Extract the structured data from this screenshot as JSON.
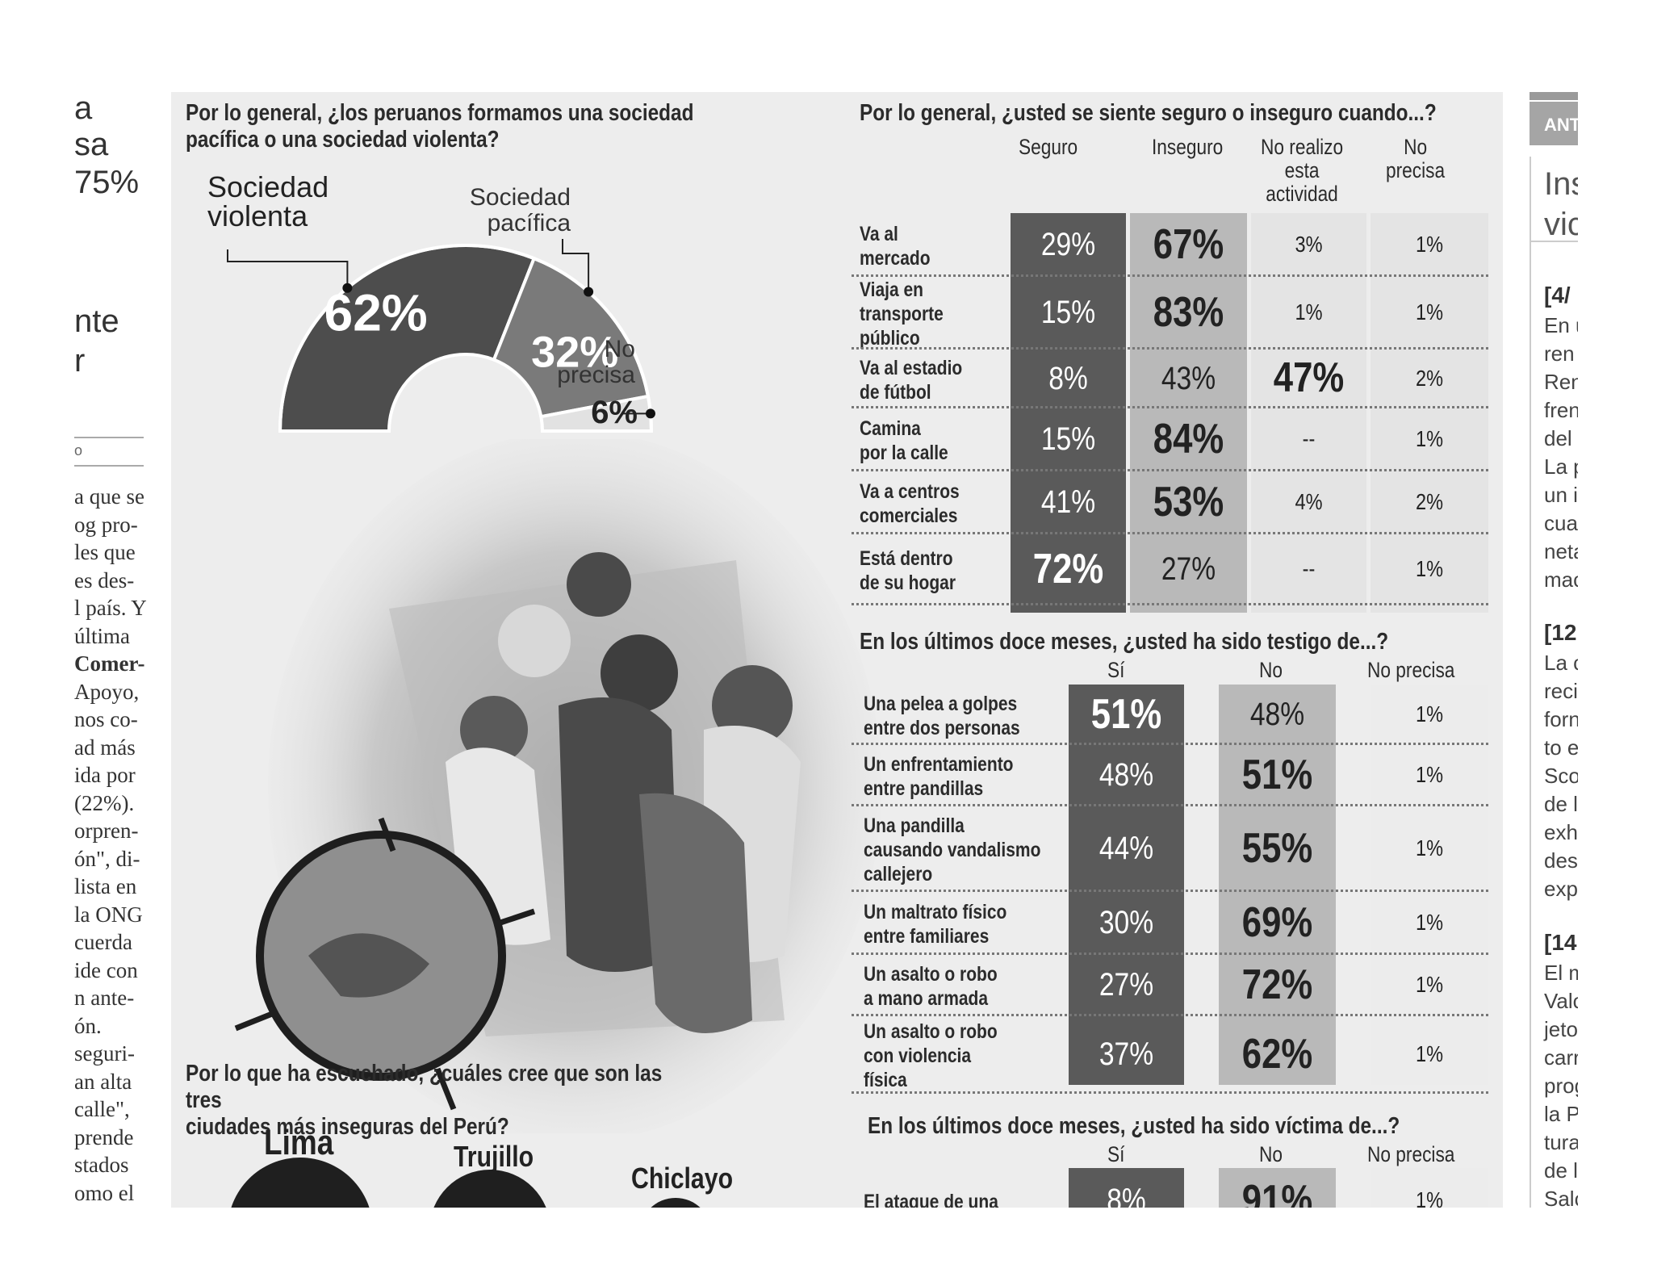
{
  "left_column": {
    "fragments": [
      "a",
      "sa",
      "75%",
      "nte",
      "r"
    ],
    "rule_text": "o",
    "body_lines": [
      "a que se",
      "og pro-",
      "les que",
      "es des-",
      "l país. Y",
      "última",
      "Comer-",
      "Apoyo,",
      "nos co-",
      "ad más",
      "ida por",
      "(22%).",
      "orpren-",
      "ón\", di-",
      "lista en",
      "la ONG",
      "cuerda",
      "ide con",
      "n ante-",
      "ón.",
      "seguri-",
      "an alta",
      "calle\",",
      "prende",
      "stados",
      "omo el"
    ]
  },
  "right_column": {
    "tag": "ANT",
    "headline": [
      "Ins",
      "vic"
    ],
    "sections": [
      {
        "date": "[4/",
        "lines": [
          "En u",
          "ren a",
          "Ren",
          "fren",
          "del I",
          "La p",
          "un ir",
          "cua",
          "neta",
          "mac"
        ]
      },
      {
        "date": "[12",
        "lines": [
          "La c",
          "recil",
          "forn",
          "to ex",
          "Sco",
          "de la",
          "exha",
          "des",
          "exp"
        ]
      },
      {
        "date": "[14",
        "lines": [
          "El m",
          "Valc",
          "jeto",
          "carr",
          "prog",
          "la Pa",
          "tura",
          "de la",
          "Salc"
        ]
      }
    ]
  },
  "chart_data": [
    {
      "type": "pie",
      "title": "Por lo general, ¿los peruanos formamos una sociedad pacífica o una sociedad violenta?",
      "style": "semicircle-donut",
      "categories": [
        "Sociedad violenta",
        "Sociedad pacífica",
        "No precisa"
      ],
      "values": [
        62,
        32,
        6
      ],
      "value_labels": [
        "62%",
        "32%",
        "6%"
      ],
      "colors": [
        "#4d4d4d",
        "#7a7a7a",
        "#e2e2e2"
      ]
    },
    {
      "type": "table",
      "title": "Por lo general, ¿usted se siente seguro o inseguro cuando...?",
      "columns": [
        "Seguro",
        "Inseguro",
        "No realizo esta actividad",
        "No precisa"
      ],
      "rows": [
        {
          "label": "Va al mercado",
          "values": [
            "29%",
            "67%",
            "3%",
            "1%"
          ]
        },
        {
          "label": "Viaja en transporte público",
          "values": [
            "15%",
            "83%",
            "1%",
            "1%"
          ]
        },
        {
          "label": "Va al estadio de fútbol",
          "values": [
            "8%",
            "43%",
            "47%",
            "2%"
          ]
        },
        {
          "label": "Camina por la calle",
          "values": [
            "15%",
            "84%",
            "--",
            "1%"
          ]
        },
        {
          "label": "Va a centros comerciales",
          "values": [
            "41%",
            "53%",
            "4%",
            "2%"
          ]
        },
        {
          "label": "Está dentro de su hogar",
          "values": [
            "72%",
            "27%",
            "--",
            "1%"
          ]
        }
      ]
    },
    {
      "type": "table",
      "title": "En los últimos doce meses, ¿usted ha sido testigo de...?",
      "columns": [
        "Sí",
        "No",
        "No precisa"
      ],
      "rows": [
        {
          "label": "Una pelea a golpes entre dos personas",
          "values": [
            "51%",
            "48%",
            "1%"
          ]
        },
        {
          "label": "Un enfrentamiento entre pandillas",
          "values": [
            "48%",
            "51%",
            "1%"
          ]
        },
        {
          "label": "Una pandilla causando vandalismo callejero",
          "values": [
            "44%",
            "55%",
            "1%"
          ]
        },
        {
          "label": "Un maltrato físico entre familiares",
          "values": [
            "30%",
            "69%",
            "1%"
          ]
        },
        {
          "label": "Un asalto o robo a mano armada",
          "values": [
            "27%",
            "72%",
            "1%"
          ]
        },
        {
          "label": "Un asalto o robo con violencia física",
          "values": [
            "37%",
            "62%",
            "1%"
          ]
        }
      ]
    },
    {
      "type": "table",
      "title": "En los últimos doce meses, ¿usted ha sido víctima de...?",
      "columns": [
        "Sí",
        "No",
        "No precisa"
      ],
      "rows": [
        {
          "label": "El ataque de una",
          "values": [
            "8%",
            "91%",
            "1%"
          ]
        }
      ]
    },
    {
      "type": "bar",
      "title": "Por lo que ha escuchado, ¿cuáles cree que son las tres ciudades más inseguras del Perú?",
      "categories": [
        "Lima",
        "Trujillo",
        "Chiclayo"
      ]
    }
  ]
}
